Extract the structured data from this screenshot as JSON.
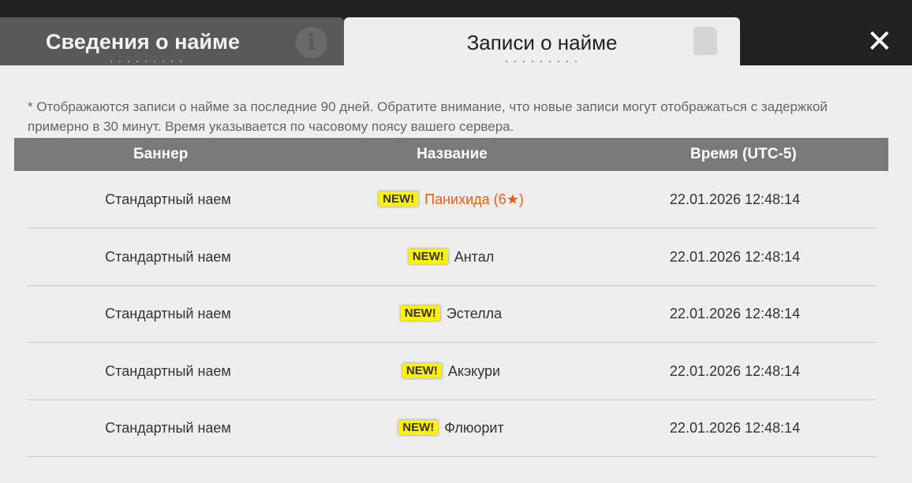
{
  "tabs": [
    {
      "label": "Сведения о найме",
      "icon": "info-icon",
      "active": false
    },
    {
      "label": "Записи о найме",
      "icon": "document-icon",
      "active": true
    }
  ],
  "close_icon": "close-icon",
  "note": "* Отображаются записи о найме за последние 90 дней. Обратите внимание, что новые записи могут отображаться с задержкой примерно в 30 минут. Время указывается по часовому поясу вашего сервера.",
  "columns": [
    "Баннер",
    "Название",
    "Время (UTC-5)"
  ],
  "badge": "NEW!",
  "highlight_color": "#f15a0f",
  "rows": [
    {
      "banner": "Стандартный наем",
      "name": "Панихида (6★)",
      "time": "22.01.2026 12:48:14",
      "highlight": true
    },
    {
      "banner": "Стандартный наем",
      "name": "Антал",
      "time": "22.01.2026 12:48:14"
    },
    {
      "banner": "Стандартный наем",
      "name": "Эстелла",
      "time": "22.01.2026 12:48:14"
    },
    {
      "banner": "Стандартный наем",
      "name": "Акэкури",
      "time": "22.01.2026 12:48:14"
    },
    {
      "banner": "Стандартный наем",
      "name": "Флюорит",
      "time": "22.01.2026 12:48:14"
    }
  ]
}
